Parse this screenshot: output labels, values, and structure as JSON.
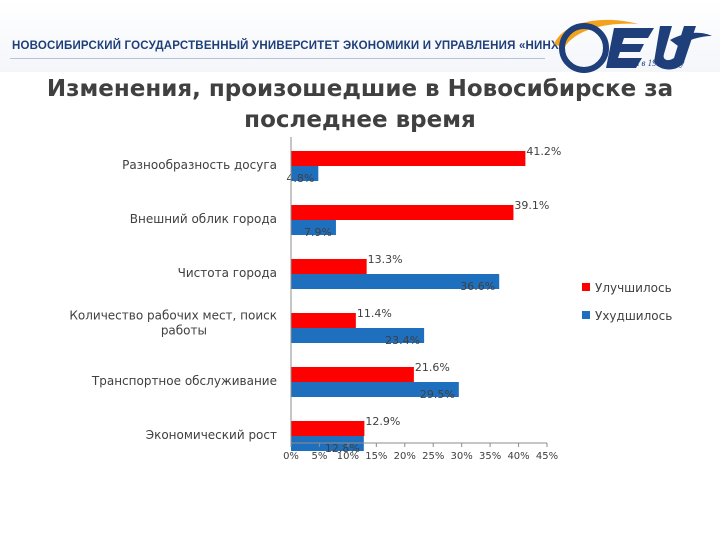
{
  "header": {
    "university_name": "НОВОСИБИРСКИЙ ГОСУДАРСТВЕННЫЙ УНИВЕРСИТЕТ ЭКОНОМИКИ И УПРАВЛЕНИЯ «НИНХ»",
    "logo_motto": "Основан в 1929 году",
    "logo_colors": {
      "navy": "#1f3f7a",
      "orange": "#f2a21b"
    }
  },
  "slide": {
    "title": "Изменения, произошедшие в Новосибирске за последнее время"
  },
  "chart_data": {
    "type": "bar",
    "orientation": "horizontal",
    "categories": [
      "Разнообразность досуга",
      "Внешний облик города",
      "Чистота города",
      "Количество рабочих мест, поиск работы",
      "Транспортное обслуживание",
      "Экономический рост"
    ],
    "series": [
      {
        "name": "Улучшилось",
        "color": "#ff0000",
        "values": [
          41.2,
          39.1,
          13.3,
          11.4,
          21.6,
          12.9
        ],
        "labels": [
          "41.2%",
          "39.1%",
          "13.3%",
          "11.4%",
          "21.6%",
          "12.9%"
        ]
      },
      {
        "name": "Ухудшилось",
        "color": "#1f6fbf",
        "values": [
          4.8,
          7.9,
          36.6,
          23.4,
          29.5,
          12.8
        ],
        "labels": [
          "4.8%",
          "7.9%",
          "36.6%",
          "23.4%",
          "29.5%",
          "12.8%"
        ]
      }
    ],
    "xlim": [
      0,
      45
    ],
    "x_ticks": [
      0,
      5,
      10,
      15,
      20,
      25,
      30,
      35,
      40,
      45
    ],
    "x_tick_labels": [
      "0%",
      "5%",
      "10%",
      "15%",
      "20%",
      "25%",
      "30%",
      "35%",
      "40%",
      "45%"
    ],
    "grid": false,
    "legend_position": "right"
  }
}
